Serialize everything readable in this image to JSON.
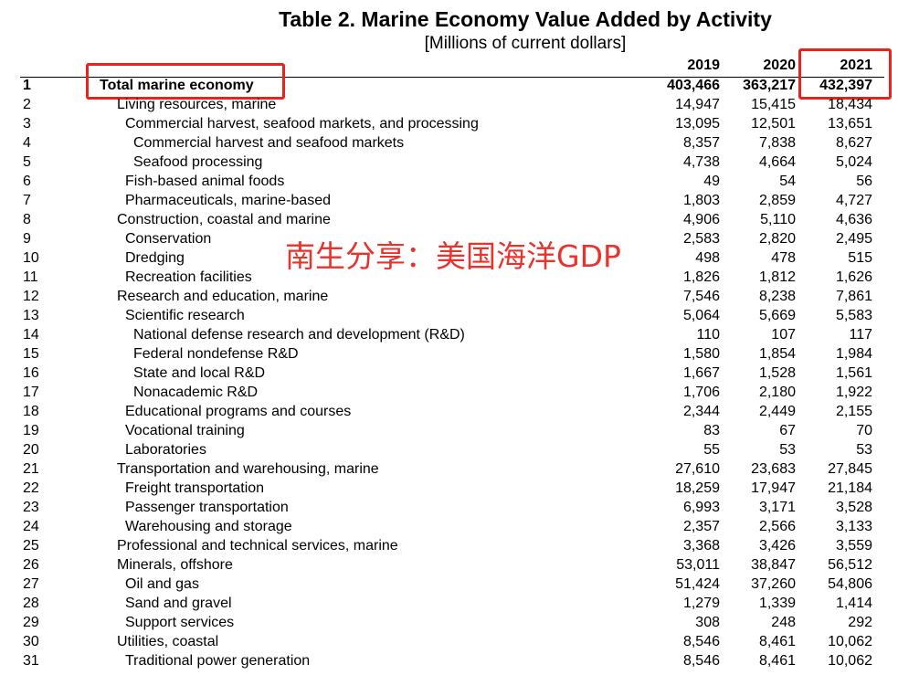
{
  "header": {
    "title": "Table 2. Marine Economy Value Added by Activity",
    "subtitle": "[Millions of current dollars]"
  },
  "watermark": "南生分享：美国海洋GDP",
  "table": {
    "columns": [
      "2019",
      "2020",
      "2021"
    ],
    "rows": [
      [
        "1",
        "Total marine economy",
        "403,466",
        "363,217",
        "432,397"
      ],
      [
        "2",
        "Living resources, marine",
        "14,947",
        "15,415",
        "18,434"
      ],
      [
        "3",
        "Commercial harvest, seafood markets, and processing",
        "13,095",
        "12,501",
        "13,651"
      ],
      [
        "4",
        "Commercial harvest and seafood markets",
        "8,357",
        "7,838",
        "8,627"
      ],
      [
        "5",
        "Seafood processing",
        "4,738",
        "4,664",
        "5,024"
      ],
      [
        "6",
        "Fish-based animal foods",
        "49",
        "54",
        "56"
      ],
      [
        "7",
        "Pharmaceuticals, marine-based",
        "1,803",
        "2,859",
        "4,727"
      ],
      [
        "8",
        "Construction, coastal and marine",
        "4,906",
        "5,110",
        "4,636"
      ],
      [
        "9",
        "Conservation",
        "2,583",
        "2,820",
        "2,495"
      ],
      [
        "10",
        "Dredging",
        "498",
        "478",
        "515"
      ],
      [
        "11",
        "Recreation facilities",
        "1,826",
        "1,812",
        "1,626"
      ],
      [
        "12",
        "Research and education, marine",
        "7,546",
        "8,238",
        "7,861"
      ],
      [
        "13",
        "Scientific research",
        "5,064",
        "5,669",
        "5,583"
      ],
      [
        "14",
        "National defense research and development (R&D)",
        "110",
        "107",
        "117"
      ],
      [
        "15",
        "Federal nondefense R&D",
        "1,580",
        "1,854",
        "1,984"
      ],
      [
        "16",
        "State and local R&D",
        "1,667",
        "1,528",
        "1,561"
      ],
      [
        "17",
        "Nonacademic R&D",
        "1,706",
        "2,180",
        "1,922"
      ],
      [
        "18",
        "Educational programs and courses",
        "2,344",
        "2,449",
        "2,155"
      ],
      [
        "19",
        "Vocational training",
        "83",
        "67",
        "70"
      ],
      [
        "20",
        "Laboratories",
        "55",
        "53",
        "53"
      ],
      [
        "21",
        "Transportation and warehousing, marine",
        "27,610",
        "23,683",
        "27,845"
      ],
      [
        "22",
        "Freight transportation",
        "18,259",
        "17,947",
        "21,184"
      ],
      [
        "23",
        "Passenger transportation",
        "6,993",
        "3,171",
        "3,528"
      ],
      [
        "24",
        "Warehousing and storage",
        "2,357",
        "2,566",
        "3,133"
      ],
      [
        "25",
        "Professional and technical services, marine",
        "3,368",
        "3,426",
        "3,559"
      ],
      [
        "26",
        "Minerals, offshore",
        "53,011",
        "38,847",
        "56,512"
      ],
      [
        "27",
        "Oil and gas",
        "51,424",
        "37,260",
        "54,806"
      ],
      [
        "28",
        "Sand and gravel",
        "1,279",
        "1,339",
        "1,414"
      ],
      [
        "29",
        "Support services",
        "308",
        "248",
        "292"
      ],
      [
        "30",
        "Utilities, coastal",
        "8,546",
        "8,461",
        "10,062"
      ],
      [
        "31",
        "Traditional power generation",
        "8,546",
        "8,461",
        "10,062"
      ]
    ]
  }
}
